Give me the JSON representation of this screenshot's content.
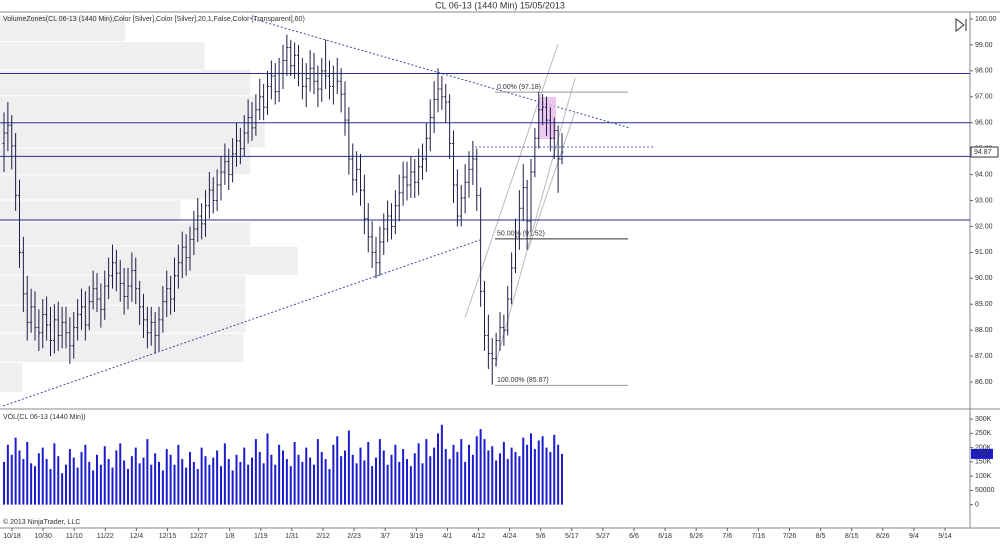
{
  "chart_data": [
    {
      "type": "ohlc",
      "title": "CL 06-13 (1440 Min)  15/05/2013",
      "label": "VolumeZones(CL 06-13 (1440 Min),Color [Silver],Color [Silver],20,1,False,Color [Transparent],60)",
      "color": "#1c1c4a",
      "open": [
        95.2,
        95.6,
        95.9,
        95.1,
        93.2,
        91.0,
        89.4,
        88.3,
        88.9,
        88.1,
        87.9,
        88.6,
        88.2,
        87.6,
        88.4,
        87.8,
        88.3,
        87.9,
        87.4,
        88.1,
        88.6,
        88.9,
        88.2,
        89.1,
        89.6,
        89.2,
        88.8,
        89.7,
        90.1,
        90.6,
        90.2,
        89.8,
        89.3,
        89.7,
        90.3,
        89.6,
        88.9,
        88.4,
        87.9,
        88.3,
        87.8,
        88.4,
        89.1,
        89.6,
        89.2,
        90.1,
        90.6,
        91.2,
        90.8,
        91.5,
        91.9,
        92.4,
        92.1,
        92.8,
        93.4,
        93.0,
        93.6,
        94.1,
        94.5,
        94.0,
        94.8,
        95.3,
        95.0,
        95.6,
        96.2,
        95.8,
        96.5,
        97.0,
        96.6,
        97.4,
        97.8,
        97.2,
        97.9,
        98.4,
        98.9,
        98.2,
        98.6,
        97.9,
        97.4,
        97.7,
        98.1,
        97.6,
        97.3,
        98.0,
        97.8,
        97.4,
        97.9,
        97.6,
        97.1,
        96.1,
        94.6,
        93.8,
        94.2,
        93.4,
        92.3,
        91.6,
        91.0,
        90.6,
        91.4,
        91.9,
        92.4,
        92.0,
        92.8,
        93.3,
        93.9,
        93.6,
        94.1,
        93.7,
        94.3,
        94.6,
        95.4,
        96.2,
        96.9,
        97.3,
        97.0,
        96.8,
        95.2,
        93.6,
        92.4,
        93.1,
        93.7,
        94.2,
        94.6,
        93.2,
        89.5,
        87.8,
        87.1,
        86.9,
        87.6,
        88.1,
        88.0,
        89.2,
        90.4,
        91.6,
        92.7,
        93.5,
        92.2,
        94.1,
        95.4,
        96.5,
        96.6,
        96.1,
        95.4,
        95.7,
        94.6
      ],
      "high": [
        96.4,
        96.8,
        96.3,
        95.6,
        93.8,
        91.6,
        90.1,
        89.6,
        89.5,
        88.8,
        89.2,
        89.3,
        88.9,
        89.0,
        89.1,
        88.9,
        88.9,
        88.5,
        88.7,
        89.2,
        89.6,
        89.5,
        89.7,
        90.3,
        90.2,
        89.8,
        90.3,
        90.8,
        91.3,
        91.1,
        90.7,
        90.4,
        90.4,
        91.0,
        90.8,
        89.9,
        89.4,
        88.9,
        88.9,
        88.7,
        88.9,
        89.7,
        90.3,
        90.1,
        90.8,
        91.3,
        91.8,
        91.7,
        92.0,
        92.6,
        93.1,
        92.9,
        93.4,
        94.1,
        93.9,
        94.2,
        94.7,
        95.2,
        95.0,
        95.4,
        96.0,
        95.8,
        96.3,
        96.9,
        96.8,
        97.1,
        97.7,
        97.5,
        98.0,
        98.4,
        98.3,
        98.5,
        99.0,
        99.4,
        99.2,
        99.1,
        99.0,
        98.5,
        98.3,
        98.8,
        98.7,
        98.2,
        98.5,
        99.2,
        98.4,
        98.2,
        98.5,
        98.1,
        97.6,
        96.6,
        95.2,
        94.9,
        94.8,
        94.0,
        92.9,
        92.2,
        91.6,
        92.0,
        92.5,
        93.0,
        92.9,
        93.4,
        94.0,
        94.5,
        94.5,
        94.7,
        94.6,
        95.0,
        95.2,
        96.0,
        96.9,
        97.6,
        98.1,
        97.8,
        97.5,
        97.1,
        95.7,
        94.2,
        93.6,
        94.4,
        94.9,
        95.3,
        95.0,
        93.5,
        89.9,
        88.6,
        87.7,
        87.9,
        88.7,
        88.6,
        89.7,
        91.0,
        92.3,
        93.4,
        94.4,
        93.8,
        94.6,
        95.8,
        97.2,
        97.1,
        97.0,
        96.6,
        96.2,
        95.9,
        95.6
      ],
      "low": [
        94.1,
        94.9,
        94.2,
        92.6,
        90.4,
        88.7,
        87.6,
        87.9,
        87.6,
        87.2,
        87.3,
        87.6,
        87.0,
        87.1,
        87.2,
        87.3,
        87.3,
        86.7,
        86.9,
        87.6,
        88.0,
        87.6,
        88.0,
        88.8,
        88.7,
        88.1,
        88.4,
        89.2,
        89.6,
        89.5,
        89.1,
        88.6,
        88.8,
        89.1,
        89.0,
        88.2,
        87.7,
        87.3,
        87.4,
        87.1,
        87.2,
        87.9,
        88.5,
        88.6,
        88.7,
        89.6,
        90.0,
        90.1,
        90.3,
        90.9,
        91.4,
        91.5,
        91.6,
        92.3,
        92.5,
        92.6,
        93.0,
        93.6,
        93.4,
        93.7,
        94.3,
        94.4,
        94.7,
        95.2,
        95.3,
        95.5,
        96.1,
        96.1,
        96.3,
        96.9,
        96.7,
        96.8,
        97.3,
        97.8,
        97.8,
        97.7,
        97.4,
        96.9,
        96.6,
        97.2,
        97.1,
        96.6,
        96.8,
        97.3,
        96.9,
        96.7,
        97.1,
        96.4,
        95.5,
        94.0,
        93.2,
        93.3,
        92.8,
        91.7,
        91.0,
        90.4,
        90.0,
        90.1,
        90.9,
        91.4,
        91.5,
        91.7,
        92.2,
        92.8,
        93.0,
        93.1,
        93.1,
        93.2,
        93.8,
        94.1,
        94.9,
        95.6,
        96.4,
        96.5,
        96.0,
        94.6,
        92.9,
        92.0,
        92.0,
        92.5,
        93.1,
        93.6,
        92.6,
        88.9,
        87.2,
        86.5,
        85.9,
        86.6,
        87.2,
        87.4,
        87.8,
        89.0,
        90.2,
        91.1,
        92.2,
        91.1,
        91.8,
        93.9,
        95.0,
        95.9,
        95.5,
        94.9,
        94.6,
        93.3,
        94.4
      ],
      "close": [
        95.6,
        95.9,
        95.1,
        93.2,
        91.0,
        89.4,
        88.3,
        88.9,
        88.1,
        87.9,
        88.6,
        88.2,
        87.6,
        88.4,
        87.8,
        88.3,
        87.9,
        87.4,
        88.1,
        88.6,
        88.9,
        88.2,
        89.1,
        89.6,
        89.2,
        88.8,
        89.7,
        90.1,
        90.6,
        90.2,
        89.8,
        89.3,
        89.7,
        90.3,
        89.6,
        88.9,
        88.4,
        87.9,
        88.3,
        87.8,
        88.4,
        89.1,
        89.6,
        89.2,
        90.1,
        90.6,
        91.2,
        90.8,
        91.5,
        91.9,
        92.4,
        92.1,
        92.8,
        93.4,
        93.0,
        93.6,
        94.1,
        94.5,
        94.0,
        94.8,
        95.3,
        95.0,
        95.6,
        96.2,
        95.8,
        96.5,
        97.0,
        96.6,
        97.4,
        97.8,
        97.2,
        97.9,
        98.4,
        98.9,
        98.2,
        98.6,
        97.9,
        97.4,
        97.7,
        98.1,
        97.6,
        97.3,
        98.0,
        97.8,
        97.4,
        97.9,
        97.6,
        97.1,
        96.1,
        94.6,
        93.8,
        94.2,
        93.4,
        92.3,
        91.6,
        91.0,
        90.6,
        91.4,
        91.9,
        92.4,
        92.0,
        92.8,
        93.3,
        93.9,
        93.6,
        94.1,
        93.7,
        94.3,
        94.6,
        95.4,
        96.2,
        96.9,
        97.3,
        97.0,
        96.8,
        95.2,
        93.6,
        92.4,
        93.1,
        93.7,
        94.2,
        94.6,
        93.2,
        89.5,
        87.8,
        87.1,
        86.9,
        87.6,
        88.1,
        88.0,
        89.2,
        90.4,
        91.6,
        92.7,
        93.5,
        92.2,
        94.1,
        95.4,
        96.5,
        96.6,
        96.1,
        95.4,
        95.7,
        94.6,
        94.87
      ],
      "ylim": [
        84.96,
        100.27
      ],
      "yticks": [
        {
          "value": 86,
          "label": "86.00"
        },
        {
          "value": 87,
          "label": "87.00"
        },
        {
          "value": 88,
          "label": "88.00"
        },
        {
          "value": 89,
          "label": "89.00"
        },
        {
          "value": 90,
          "label": "90.00"
        },
        {
          "value": 91,
          "label": "91.00"
        },
        {
          "value": 92,
          "label": "92.00"
        },
        {
          "value": 93,
          "label": "93.00"
        },
        {
          "value": 94,
          "label": "94.00"
        },
        {
          "value": 95,
          "label": "95.00"
        },
        {
          "value": 96,
          "label": "96.00"
        },
        {
          "value": 97,
          "label": "97.00"
        },
        {
          "value": 98,
          "label": "98.00"
        },
        {
          "value": 99,
          "label": "99.00"
        },
        {
          "value": 100,
          "label": "100.00"
        }
      ],
      "hlines": [
        97.9,
        96.0,
        94.7,
        92.25
      ],
      "hline_color": "#2b2b9a",
      "fib_levels": [
        {
          "value": 97.18,
          "label": "0.00% (97.18)"
        },
        {
          "value": 91.52,
          "label": "50.00% (91.52)"
        },
        {
          "value": 85.87,
          "label": "100.00% (85.87)"
        }
      ],
      "volume_zones": {
        "edges": [
          100.15,
          99.11,
          98.03,
          97.02,
          96.02,
          95.01,
          93.97,
          93.0,
          92.15,
          91.22,
          90.1,
          88.94,
          87.86,
          86.74,
          85.57
        ],
        "values": [
          12.9,
          21.1,
          25.8,
          26.3,
          27.3,
          25.8,
          22.2,
          18.6,
          25.8,
          30.7,
          25.3,
          25.3,
          25.1,
          2.3
        ],
        "xlim": [
          0,
          100
        ],
        "color": "#efefef"
      },
      "x_labels": [
        "10/18",
        "10/30",
        "11/10",
        "11/22",
        "12/4",
        "12/15",
        "12/27",
        "1/8",
        "1/19",
        "1/31",
        "2/12",
        "2/23",
        "3/7",
        "3/19",
        "4/1",
        "4/12",
        "4/24",
        "5/6",
        "5/17",
        "5/27",
        "6/6",
        "6/18",
        "6/26",
        "7/6",
        "7/16",
        "7/26",
        "8/5",
        "8/15",
        "8/26",
        "9/4",
        "9/14"
      ]
    },
    {
      "type": "bar",
      "label": "VOL(CL 06-13 (1440 Min))",
      "color": "#1c1ccc",
      "values": [
        150000,
        210000,
        175000,
        235000,
        190000,
        160000,
        220000,
        145000,
        135000,
        180000,
        200000,
        160000,
        125000,
        215000,
        170000,
        110000,
        140000,
        195000,
        165000,
        130000,
        185000,
        210000,
        150000,
        120000,
        175000,
        140000,
        205000,
        160000,
        130000,
        190000,
        215000,
        155000,
        125000,
        170000,
        200000,
        145000,
        165000,
        230000,
        140000,
        180000,
        150000,
        120000,
        195000,
        175000,
        140000,
        210000,
        160000,
        130000,
        185000,
        150000,
        125000,
        200000,
        170000,
        140000,
        165000,
        190000,
        135000,
        215000,
        160000,
        120000,
        175000,
        150000,
        200000,
        140000,
        165000,
        230000,
        185000,
        145000,
        250000,
        175000,
        140000,
        210000,
        190000,
        160000,
        135000,
        220000,
        175000,
        150000,
        200000,
        165000,
        140000,
        230000,
        185000,
        160000,
        125000,
        210000,
        240000,
        170000,
        190000,
        260000,
        175000,
        145000,
        200000,
        155000,
        220000,
        135000,
        165000,
        230000,
        190000,
        140000,
        175000,
        210000,
        150000,
        195000,
        160000,
        135000,
        180000,
        215000,
        145000,
        230000,
        170000,
        200000,
        250000,
        280000,
        195000,
        160000,
        210000,
        185000,
        230000,
        150000,
        210000,
        175000,
        240000,
        265000,
        230000,
        190000,
        205000,
        155000,
        180000,
        220000,
        160000,
        200000,
        185000,
        170000,
        235000,
        210000,
        250000,
        195000,
        225000,
        240000,
        200000,
        185000,
        245000,
        210000,
        178000
      ],
      "last_value_label": "178K",
      "ylim": [
        -82000,
        332000
      ],
      "yticks": [
        0,
        50000,
        {
          "value": 100000,
          "label": "100K"
        },
        {
          "value": 150000,
          "label": "150K"
        },
        {
          "value": 200000,
          "label": "200K"
        },
        {
          "value": 250000,
          "label": "250K"
        },
        {
          "value": 300000,
          "label": "300K"
        }
      ],
      "annotation": "© 2013 NinjaTrader, LLC"
    }
  ]
}
